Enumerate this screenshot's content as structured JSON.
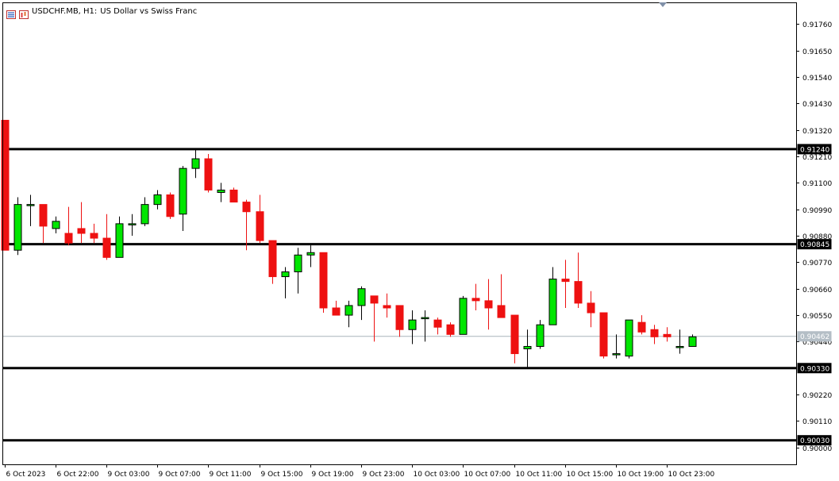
{
  "header": {
    "symbol": "USDCHF.MB, H1:",
    "description": "US Dollar vs Swiss Franc",
    "icons": [
      "chart-window-icon",
      "instrument-icon"
    ]
  },
  "colors": {
    "bull": "#00e600",
    "bear": "#ee1111",
    "level_line": "#000000",
    "bid_line": "#a8b4bc",
    "axis": "#000000"
  },
  "chart_data": {
    "type": "candlestick",
    "symbol": "USDCHF.MB",
    "timeframe": "H1",
    "ylim": [
      0.8993,
      0.9185
    ],
    "y_ticks": [
      "0.91760",
      "0.91650",
      "0.91540",
      "0.91430",
      "0.91320",
      "0.91210",
      "0.91100",
      "0.90990",
      "0.90880",
      "0.90770",
      "0.90660",
      "0.90550",
      "0.90440",
      "0.90220",
      "0.90110",
      "0.90000"
    ],
    "x_tick_labels": [
      "6 Oct 2023",
      "6 Oct 22:00",
      "9 Oct 03:00",
      "9 Oct 07:00",
      "9 Oct 11:00",
      "9 Oct 15:00",
      "9 Oct 19:00",
      "9 Oct 23:00",
      "10 Oct 03:00",
      "10 Oct 07:00",
      "10 Oct 11:00",
      "10 Oct 15:00",
      "10 Oct 19:00",
      "10 Oct 23:00"
    ],
    "levels": [
      {
        "value": 0.9124,
        "label": "0.91240"
      },
      {
        "value": 0.90845,
        "label": "0.90845"
      },
      {
        "value": 0.9033,
        "label": "0.90330"
      },
      {
        "value": 0.9003,
        "label": "0.90030"
      }
    ],
    "bid": {
      "value": 0.90462,
      "label": "0.90462"
    },
    "candles": [
      {
        "o": 0.9136,
        "h": 0.9136,
        "l": 0.9082,
        "c": 0.9082
      },
      {
        "o": 0.9082,
        "h": 0.9104,
        "l": 0.908,
        "c": 0.9101
      },
      {
        "o": 0.9101,
        "h": 0.9105,
        "l": 0.9092,
        "c": 0.9101
      },
      {
        "o": 0.9101,
        "h": 0.9101,
        "l": 0.9085,
        "c": 0.9092
      },
      {
        "o": 0.9091,
        "h": 0.9096,
        "l": 0.9089,
        "c": 0.9094
      },
      {
        "o": 0.9089,
        "h": 0.91,
        "l": 0.9084,
        "c": 0.9085
      },
      {
        "o": 0.9091,
        "h": 0.9102,
        "l": 0.9085,
        "c": 0.9089
      },
      {
        "o": 0.9089,
        "h": 0.9093,
        "l": 0.9085,
        "c": 0.9087
      },
      {
        "o": 0.9087,
        "h": 0.9097,
        "l": 0.9078,
        "c": 0.9079
      },
      {
        "o": 0.9079,
        "h": 0.9096,
        "l": 0.9079,
        "c": 0.9093
      },
      {
        "o": 0.9093,
        "h": 0.9097,
        "l": 0.9088,
        "c": 0.9093
      },
      {
        "o": 0.9093,
        "h": 0.9104,
        "l": 0.9092,
        "c": 0.9101
      },
      {
        "o": 0.9101,
        "h": 0.9107,
        "l": 0.9099,
        "c": 0.9105
      },
      {
        "o": 0.9105,
        "h": 0.9106,
        "l": 0.9095,
        "c": 0.9096
      },
      {
        "o": 0.9097,
        "h": 0.9117,
        "l": 0.909,
        "c": 0.9116
      },
      {
        "o": 0.9116,
        "h": 0.9124,
        "l": 0.9112,
        "c": 0.912
      },
      {
        "o": 0.912,
        "h": 0.9122,
        "l": 0.9106,
        "c": 0.9107
      },
      {
        "o": 0.9106,
        "h": 0.911,
        "l": 0.9102,
        "c": 0.9107
      },
      {
        "o": 0.9107,
        "h": 0.9108,
        "l": 0.9102,
        "c": 0.9102
      },
      {
        "o": 0.9102,
        "h": 0.9103,
        "l": 0.9082,
        "c": 0.9098
      },
      {
        "o": 0.9098,
        "h": 0.9105,
        "l": 0.9085,
        "c": 0.9086
      },
      {
        "o": 0.9086,
        "h": 0.9086,
        "l": 0.9068,
        "c": 0.9071
      },
      {
        "o": 0.9071,
        "h": 0.9075,
        "l": 0.9062,
        "c": 0.9073
      },
      {
        "o": 0.9073,
        "h": 0.9083,
        "l": 0.9064,
        "c": 0.908
      },
      {
        "o": 0.908,
        "h": 0.9084,
        "l": 0.9075,
        "c": 0.9081
      },
      {
        "o": 0.9081,
        "h": 0.9081,
        "l": 0.9056,
        "c": 0.9058
      },
      {
        "o": 0.9058,
        "h": 0.9061,
        "l": 0.9055,
        "c": 0.9055
      },
      {
        "o": 0.9055,
        "h": 0.9061,
        "l": 0.905,
        "c": 0.9059
      },
      {
        "o": 0.9059,
        "h": 0.9067,
        "l": 0.9053,
        "c": 0.9066
      },
      {
        "o": 0.9063,
        "h": 0.9063,
        "l": 0.9044,
        "c": 0.906
      },
      {
        "o": 0.9059,
        "h": 0.9064,
        "l": 0.9054,
        "c": 0.9058
      },
      {
        "o": 0.9059,
        "h": 0.9059,
        "l": 0.9046,
        "c": 0.9049
      },
      {
        "o": 0.9049,
        "h": 0.9057,
        "l": 0.9043,
        "c": 0.9053
      },
      {
        "o": 0.9054,
        "h": 0.9057,
        "l": 0.9044,
        "c": 0.9054
      },
      {
        "o": 0.9053,
        "h": 0.9054,
        "l": 0.9047,
        "c": 0.905
      },
      {
        "o": 0.9051,
        "h": 0.9052,
        "l": 0.9046,
        "c": 0.9047
      },
      {
        "o": 0.9047,
        "h": 0.9063,
        "l": 0.9047,
        "c": 0.9062
      },
      {
        "o": 0.9062,
        "h": 0.9068,
        "l": 0.9057,
        "c": 0.9061
      },
      {
        "o": 0.9061,
        "h": 0.907,
        "l": 0.9049,
        "c": 0.9058
      },
      {
        "o": 0.9059,
        "h": 0.9072,
        "l": 0.9054,
        "c": 0.9054
      },
      {
        "o": 0.9055,
        "h": 0.9055,
        "l": 0.9035,
        "c": 0.9039
      },
      {
        "o": 0.9041,
        "h": 0.9049,
        "l": 0.9033,
        "c": 0.9042
      },
      {
        "o": 0.9042,
        "h": 0.9053,
        "l": 0.9041,
        "c": 0.9051
      },
      {
        "o": 0.9051,
        "h": 0.9075,
        "l": 0.9051,
        "c": 0.907
      },
      {
        "o": 0.907,
        "h": 0.9078,
        "l": 0.9058,
        "c": 0.9069
      },
      {
        "o": 0.9069,
        "h": 0.9081,
        "l": 0.9058,
        "c": 0.906
      },
      {
        "o": 0.906,
        "h": 0.9065,
        "l": 0.905,
        "c": 0.9056
      },
      {
        "o": 0.9056,
        "h": 0.9056,
        "l": 0.9037,
        "c": 0.9038
      },
      {
        "o": 0.9039,
        "h": 0.9047,
        "l": 0.9037,
        "c": 0.9039
      },
      {
        "o": 0.9038,
        "h": 0.9053,
        "l": 0.9037,
        "c": 0.9053
      },
      {
        "o": 0.9052,
        "h": 0.9055,
        "l": 0.9047,
        "c": 0.9048
      },
      {
        "o": 0.9049,
        "h": 0.9051,
        "l": 0.9043,
        "c": 0.9046
      },
      {
        "o": 0.9047,
        "h": 0.905,
        "l": 0.9044,
        "c": 0.9046
      },
      {
        "o": 0.9042,
        "h": 0.9049,
        "l": 0.9039,
        "c": 0.9042
      },
      {
        "o": 0.9042,
        "h": 0.9047,
        "l": 0.9042,
        "c": 0.9046
      }
    ]
  }
}
